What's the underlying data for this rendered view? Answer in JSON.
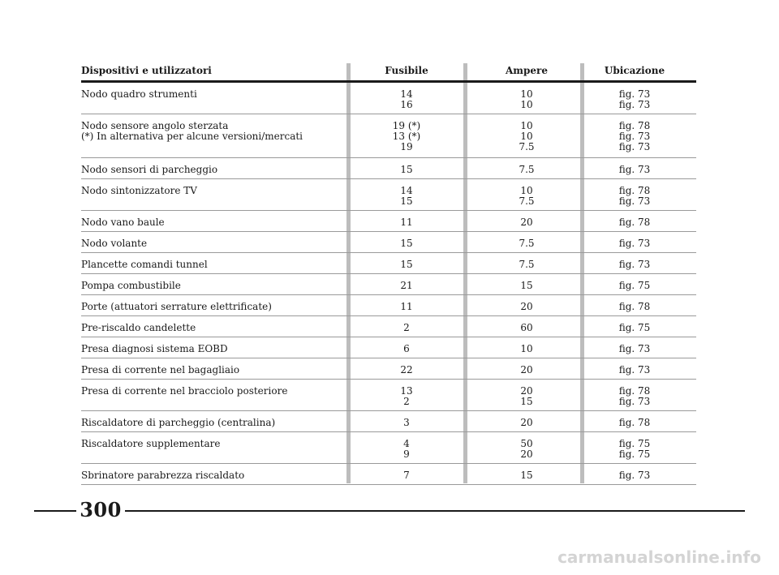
{
  "table": {
    "headers": {
      "device": "Dispositivi e utilizzatori",
      "fuse": "Fusibile",
      "ampere": "Ampere",
      "location": "Ubicazione"
    },
    "rows": [
      {
        "device": [
          "Nodo quadro strumenti"
        ],
        "fuse": [
          "14",
          "16"
        ],
        "ampere": [
          "10",
          "10"
        ],
        "location": [
          "fig. 73",
          "fig. 73"
        ]
      },
      {
        "device": [
          "Nodo sensore angolo sterzata",
          "(*) In alternativa per alcune versioni/mercati"
        ],
        "fuse": [
          "19 (*)",
          "13 (*)",
          "19"
        ],
        "ampere": [
          "10",
          "10",
          "7.5"
        ],
        "location": [
          "fig. 78",
          "fig. 73",
          "fig. 73"
        ]
      },
      {
        "device": [
          "Nodo sensori di parcheggio"
        ],
        "fuse": [
          "15"
        ],
        "ampere": [
          "7.5"
        ],
        "location": [
          "fig. 73"
        ]
      },
      {
        "device": [
          "Nodo sintonizzatore TV"
        ],
        "fuse": [
          "14",
          "15"
        ],
        "ampere": [
          "10",
          "7.5"
        ],
        "location": [
          "fig. 78",
          "fig. 73"
        ]
      },
      {
        "device": [
          "Nodo vano baule"
        ],
        "fuse": [
          "11"
        ],
        "ampere": [
          "20"
        ],
        "location": [
          "fig. 78"
        ]
      },
      {
        "device": [
          "Nodo volante"
        ],
        "fuse": [
          "15"
        ],
        "ampere": [
          "7.5"
        ],
        "location": [
          "fig. 73"
        ]
      },
      {
        "device": [
          "Plancette comandi tunnel"
        ],
        "fuse": [
          "15"
        ],
        "ampere": [
          "7.5"
        ],
        "location": [
          "fig. 73"
        ]
      },
      {
        "device": [
          "Pompa combustibile"
        ],
        "fuse": [
          "21"
        ],
        "ampere": [
          "15"
        ],
        "location": [
          "fig. 75"
        ]
      },
      {
        "device": [
          "Porte (attuatori serrature elettrificate)"
        ],
        "fuse": [
          "11"
        ],
        "ampere": [
          "20"
        ],
        "location": [
          "fig. 78"
        ]
      },
      {
        "device": [
          "Pre-riscaldo candelette"
        ],
        "fuse": [
          "2"
        ],
        "ampere": [
          "60"
        ],
        "location": [
          "fig. 75"
        ]
      },
      {
        "device": [
          "Presa diagnosi sistema EOBD"
        ],
        "fuse": [
          "6"
        ],
        "ampere": [
          "10"
        ],
        "location": [
          "fig. 73"
        ]
      },
      {
        "device": [
          "Presa di corrente nel bagagliaio"
        ],
        "fuse": [
          "22"
        ],
        "ampere": [
          "20"
        ],
        "location": [
          "fig. 73"
        ]
      },
      {
        "device": [
          "Presa di corrente nel bracciolo posteriore"
        ],
        "fuse": [
          "13",
          "2"
        ],
        "ampere": [
          "20",
          "15"
        ],
        "location": [
          "fig. 78",
          "fig. 73"
        ]
      },
      {
        "device": [
          "Riscaldatore di parcheggio (centralina)"
        ],
        "fuse": [
          "3"
        ],
        "ampere": [
          "20"
        ],
        "location": [
          "fig. 78"
        ]
      },
      {
        "device": [
          "Riscaldatore supplementare"
        ],
        "fuse": [
          "4",
          "9"
        ],
        "ampere": [
          "50",
          "20"
        ],
        "location": [
          "fig. 75",
          "fig. 75"
        ]
      },
      {
        "device": [
          "Sbrinatore parabrezza riscaldato"
        ],
        "fuse": [
          "7"
        ],
        "ampere": [
          "15"
        ],
        "location": [
          "fig. 73"
        ]
      }
    ]
  },
  "page_number": "300",
  "watermark": "carmanualsonline.info"
}
